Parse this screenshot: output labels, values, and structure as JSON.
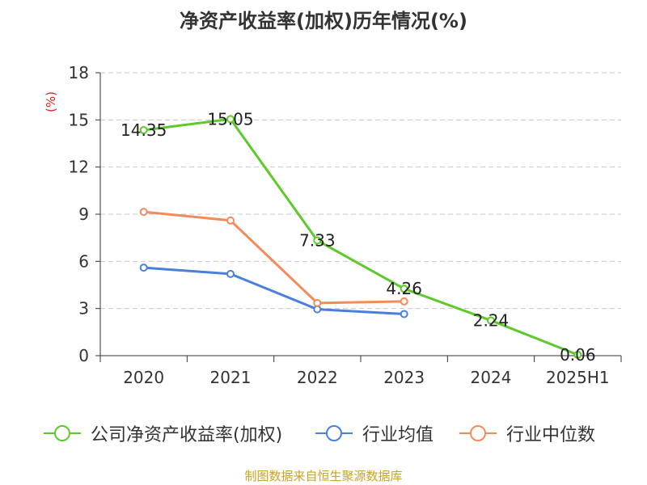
{
  "chart_data": {
    "type": "line",
    "title": "净资产收益率(加权)历年情况(%)",
    "ylabel": "(%)",
    "xlabel": "",
    "categories": [
      "2020",
      "2021",
      "2022",
      "2023",
      "2024",
      "2025H1"
    ],
    "yticks": [
      "0",
      "3",
      "6",
      "9",
      "12",
      "15",
      "18"
    ],
    "ylim": [
      0,
      18
    ],
    "grid": true,
    "legend_position": "bottom",
    "series": [
      {
        "name": "公司净资产收益率(加权)",
        "color": "#5dc92a",
        "values": [
          14.35,
          15.05,
          7.33,
          4.26,
          2.24,
          0.06
        ],
        "labels": [
          "14.35",
          "15.05",
          "7.33",
          "4.26",
          "2.24",
          "0.06"
        ]
      },
      {
        "name": "行业均值",
        "color": "#4a7fdc",
        "values": [
          5.6,
          5.2,
          2.95,
          2.65,
          null,
          null
        ],
        "labels": null
      },
      {
        "name": "行业中位数",
        "color": "#f28b5a",
        "values": [
          9.15,
          8.6,
          3.35,
          3.45,
          null,
          null
        ],
        "labels": null
      }
    ]
  },
  "footer": {
    "source": "制图数据来自恒生聚源数据库"
  }
}
